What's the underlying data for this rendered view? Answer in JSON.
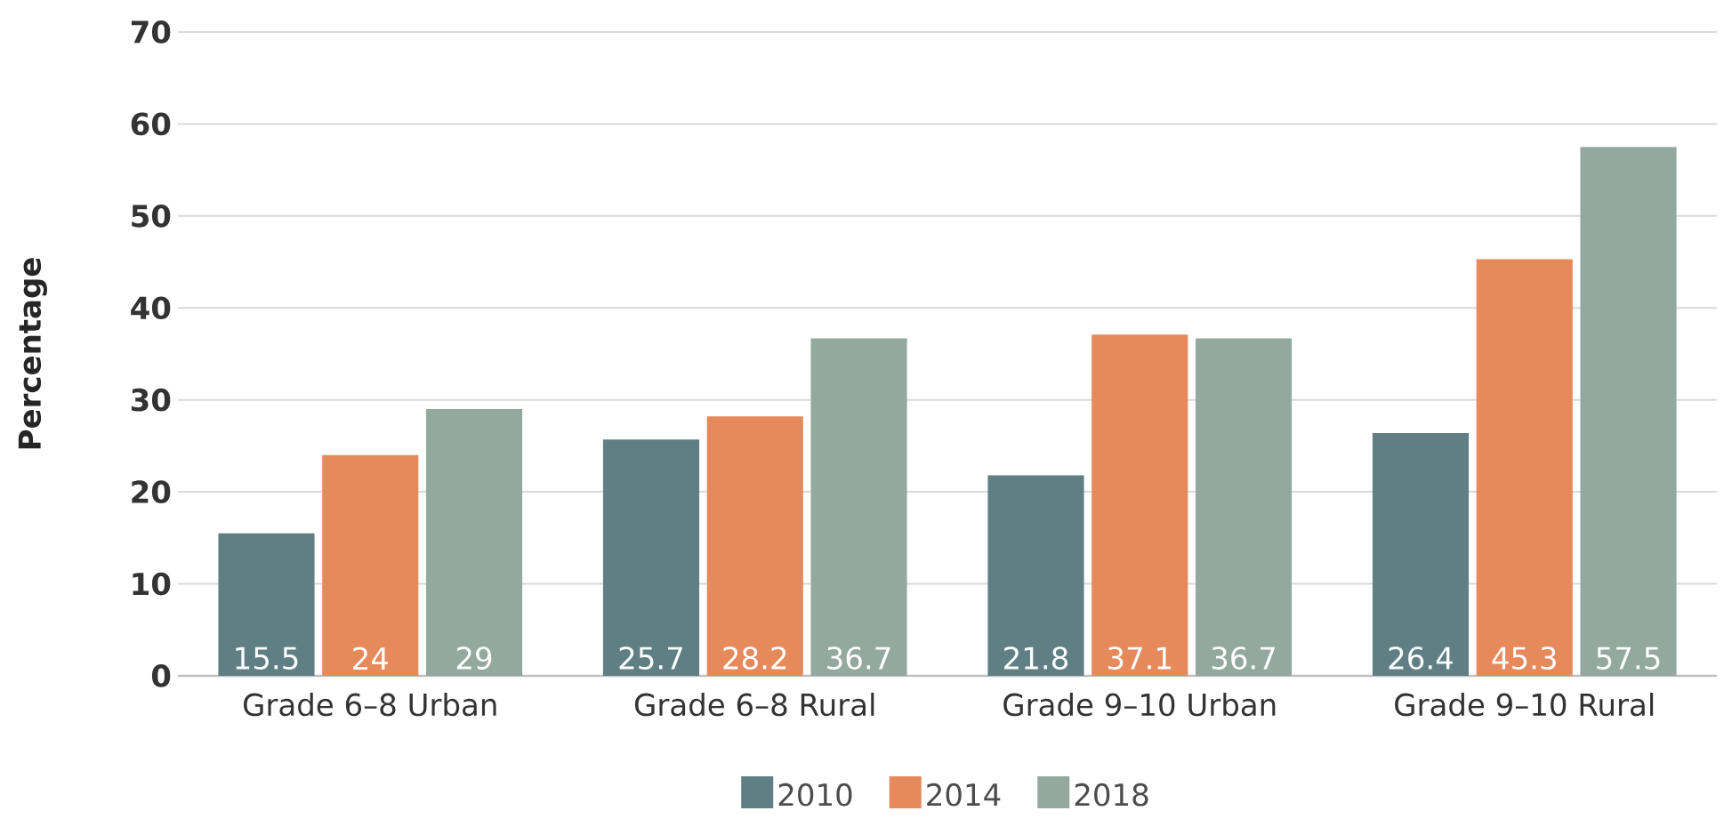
{
  "chart_data": {
    "type": "bar",
    "ylabel": "Percentage",
    "categories": [
      "Grade 6–8 Urban",
      "Grade 6–8 Rural",
      "Grade 9–10 Urban",
      "Grade 9–10 Rural"
    ],
    "series": [
      {
        "name": "2010",
        "color": "#5f7f85",
        "values": [
          15.5,
          25.7,
          21.8,
          26.4
        ]
      },
      {
        "name": "2014",
        "color": "#e6895b",
        "values": [
          24,
          28.2,
          37.1,
          45.3
        ]
      },
      {
        "name": "2018",
        "color": "#93a9a0",
        "values": [
          29,
          36.7,
          36.7,
          57.5
        ]
      }
    ],
    "ylim": [
      0,
      70
    ],
    "yticks": [
      0,
      10,
      20,
      30,
      40,
      50,
      60,
      70
    ],
    "grid": "y",
    "legend": "bottom",
    "data_labels": true
  }
}
